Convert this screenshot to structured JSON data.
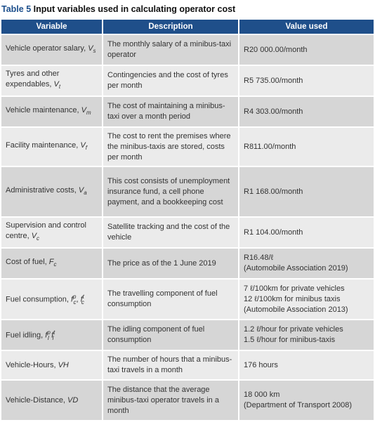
{
  "caption": {
    "label": "Table 5",
    "title": "Input variables used in calculating operator cost"
  },
  "table": {
    "header": [
      "Variable",
      "Description",
      "Value used"
    ],
    "rows": [
      {
        "variable": {
          "label": "Vehicle operator salary, ",
          "symbol": [
            {
              "text": "V",
              "style": "italic"
            },
            {
              "text": "s",
              "style": "sub"
            }
          ]
        },
        "description": "The monthly salary of a minibus-taxi operator",
        "value": [
          "R20 000.00/month"
        ]
      },
      {
        "variable": {
          "label": "Tyres and other expendables, ",
          "symbol": [
            {
              "text": "V",
              "style": "italic"
            },
            {
              "text": "t",
              "style": "sub"
            }
          ]
        },
        "description": "Contingencies and the cost of tyres per month",
        "value": [
          "R5 735.00/month"
        ]
      },
      {
        "variable": {
          "label": "Vehicle maintenance, ",
          "symbol": [
            {
              "text": "V",
              "style": "italic"
            },
            {
              "text": "m",
              "style": "sub"
            }
          ]
        },
        "description": "The cost of maintaining a minibus-taxi over a month period",
        "value": [
          "R4 303.00/month"
        ]
      },
      {
        "variable": {
          "label": "Facility maintenance, ",
          "symbol": [
            {
              "text": "V",
              "style": "italic"
            },
            {
              "text": "f",
              "style": "sub"
            }
          ]
        },
        "description": "The cost to rent the premises where the minibus-taxis are stored, costs per month",
        "value": [
          "R811.00/month"
        ]
      },
      {
        "variable": {
          "label": "Administrative costs, ",
          "symbol": [
            {
              "text": "V",
              "style": "italic"
            },
            {
              "text": "a",
              "style": "sub"
            }
          ]
        },
        "description": "This cost consists of unemployment insurance fund, a cell phone payment, and a bookkeeping cost",
        "value": [
          "R1 168.00/month"
        ]
      },
      {
        "variable": {
          "label": "Supervision and control centre, ",
          "symbol": [
            {
              "text": "V",
              "style": "italic"
            },
            {
              "text": "c",
              "style": "sub"
            }
          ]
        },
        "description": "Satellite tracking and the cost of the vehicle",
        "value": [
          "R1 104.00/month"
        ]
      },
      {
        "variable": {
          "label": "Cost of fuel, ",
          "symbol": [
            {
              "text": "F",
              "style": "italic"
            },
            {
              "text": "c",
              "style": "sub"
            }
          ]
        },
        "description": "The price as of the 1 June 2019",
        "value": [
          "R16.48/ℓ",
          "(Automobile Association 2019)"
        ]
      },
      {
        "variable": {
          "label": "Fuel consumption, ",
          "symbol": [
            {
              "text": "f",
              "style": "italic"
            },
            {
              "text": "p",
              "style": "sup"
            },
            {
              "text": "c",
              "style": "sub"
            },
            {
              "text": ", ",
              "style": "plain"
            },
            {
              "text": "f",
              "style": "italic"
            },
            {
              "text": "t",
              "style": "sup"
            },
            {
              "text": "c",
              "style": "sub"
            }
          ]
        },
        "description": "The travelling component of fuel consumption",
        "value": [
          "7 ℓ/100km for private vehicles",
          "12 ℓ/100km for minibus taxis",
          "(Automobile Association 2013)"
        ]
      },
      {
        "variable": {
          "label": "Fuel idling, ",
          "symbol": [
            {
              "text": "f",
              "style": "italic"
            },
            {
              "text": "p",
              "style": "sup"
            },
            {
              "text": "I",
              "style": "sub"
            },
            {
              "text": " ",
              "style": "plain"
            },
            {
              "text": "f",
              "style": "italic"
            },
            {
              "text": "t",
              "style": "sup"
            },
            {
              "text": "I",
              "style": "sub"
            }
          ]
        },
        "description": "The idling component of fuel consumption",
        "value": [
          "1.2 ℓ/hour for private vehicles",
          "1.5 ℓ/hour for minibus-taxis"
        ]
      },
      {
        "variable": {
          "label": "Vehicle-Hours, ",
          "symbol": [
            {
              "text": "VH",
              "style": "italic"
            }
          ]
        },
        "description": "The number of hours that a minibus-taxi travels in a month",
        "value": [
          "176 hours"
        ]
      },
      {
        "variable": {
          "label": "Vehicle-Distance, ",
          "symbol": [
            {
              "text": "VD",
              "style": "italic"
            }
          ]
        },
        "description": "The distance that the average minibus-taxi operator travels in a month",
        "value": [
          "18 000 km",
          "(Department of Transport 2008)"
        ]
      }
    ]
  }
}
